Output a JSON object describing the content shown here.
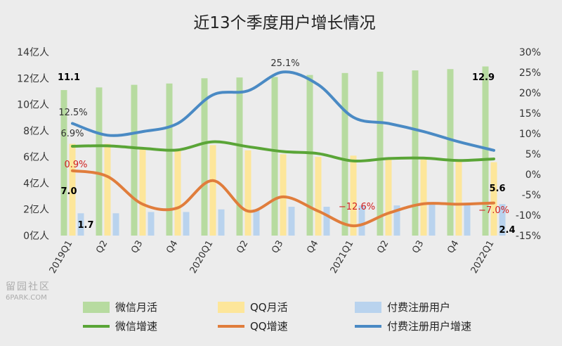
{
  "chart_data": {
    "type": "bar",
    "title": "近13个季度用户增长情况",
    "categories": [
      "2019Q1",
      "Q2",
      "Q3",
      "Q4",
      "2020Q1",
      "Q2",
      "Q3",
      "Q4",
      "2021Q1",
      "Q2",
      "Q3",
      "Q4",
      "2022Q1"
    ],
    "y_left": {
      "min": 0,
      "max": 14,
      "step": 2,
      "unit": "亿人",
      "ticks": [
        "0亿人",
        "2亿人",
        "4亿人",
        "6亿人",
        "8亿人",
        "10亿人",
        "12亿人",
        "14亿人"
      ]
    },
    "y_right": {
      "min": -15,
      "max": 30,
      "step": 5,
      "ticks": [
        "-15%",
        "-10%",
        "-5%",
        "0%",
        "5%",
        "10%",
        "15%",
        "20%",
        "25%",
        "30%"
      ]
    },
    "series": [
      {
        "name": "微信月活",
        "kind": "bar",
        "axis": "left",
        "color": "#b7dba0",
        "values": [
          11.1,
          11.3,
          11.5,
          11.6,
          12.0,
          12.06,
          12.1,
          12.25,
          12.4,
          12.5,
          12.6,
          12.7,
          12.9
        ]
      },
      {
        "name": "QQ月活",
        "kind": "bar",
        "axis": "left",
        "color": "#fde69a",
        "values": [
          7.0,
          7.0,
          6.6,
          6.5,
          6.9,
          6.5,
          6.2,
          6.0,
          6.1,
          5.9,
          5.8,
          5.7,
          5.6
        ]
      },
      {
        "name": "付费注册用户",
        "kind": "bar",
        "axis": "left",
        "color": "#b9d3ee",
        "values": [
          1.7,
          1.7,
          1.8,
          1.8,
          2.0,
          2.0,
          2.2,
          2.2,
          2.3,
          2.3,
          2.4,
          2.4,
          2.4
        ]
      },
      {
        "name": "微信增速",
        "kind": "line",
        "axis": "right",
        "color": "#5aa537",
        "values": [
          6.9,
          7.0,
          6.4,
          6.0,
          8.0,
          6.8,
          5.6,
          5.1,
          3.3,
          3.9,
          4.0,
          3.4,
          3.8
        ]
      },
      {
        "name": "QQ增速",
        "kind": "line",
        "axis": "right",
        "color": "#e07d3c",
        "values": [
          0.9,
          -0.5,
          -7.3,
          -8.2,
          -1.5,
          -9.0,
          -5.5,
          -9.0,
          -12.6,
          -9.5,
          -7.2,
          -7.3,
          -7.0
        ]
      },
      {
        "name": "付费注册用户增速",
        "kind": "line",
        "axis": "right",
        "color": "#4a8ac4",
        "values": [
          12.5,
          9.6,
          10.5,
          12.5,
          19.5,
          20.5,
          25.1,
          22.0,
          14.0,
          12.5,
          10.5,
          8.0,
          5.9
        ]
      }
    ],
    "data_labels": [
      {
        "text": "11.1",
        "color": "#000000"
      },
      {
        "text": "12.9",
        "color": "#000000"
      },
      {
        "text": "7.0",
        "color": "#000000"
      },
      {
        "text": "5.6",
        "color": "#000000"
      },
      {
        "text": "1.7",
        "color": "#000000"
      },
      {
        "text": "2.4",
        "color": "#000000"
      },
      {
        "text": "6.9%",
        "color": "#333333"
      },
      {
        "text": "0.9%",
        "color": "#d02020"
      },
      {
        "text": "−12.6%",
        "color": "#d02020"
      },
      {
        "text": "−7.0%",
        "color": "#d02020"
      },
      {
        "text": "12.5%",
        "color": "#333333"
      },
      {
        "text": "25.1%",
        "color": "#333333"
      }
    ],
    "legend_placement": "bottom",
    "grid": false
  },
  "watermark": {
    "line1": "留园社区",
    "line2": "6PARK.COM"
  }
}
